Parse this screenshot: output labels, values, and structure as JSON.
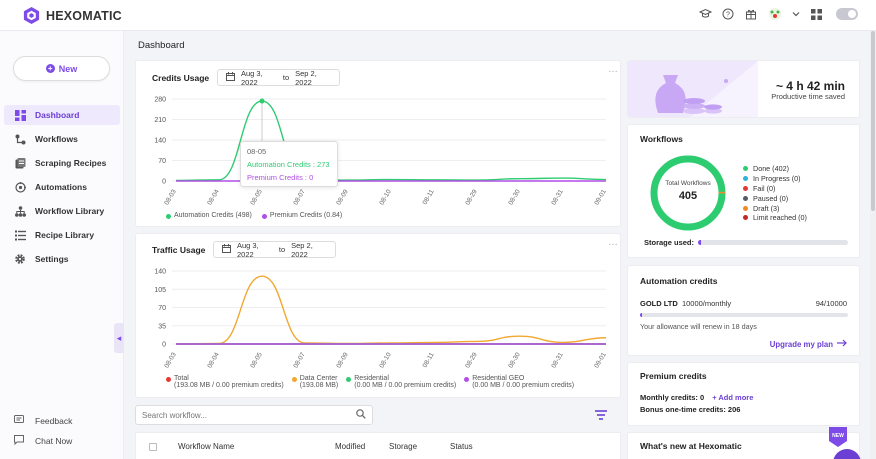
{
  "app": {
    "name": "HEXOMATIC"
  },
  "sidebar": {
    "new_label": "New",
    "items": [
      {
        "label": "Dashboard",
        "icon": "dashboard-icon",
        "active": true
      },
      {
        "label": "Workflows",
        "icon": "workflow-icon",
        "active": false
      },
      {
        "label": "Scraping Recipes",
        "icon": "scraping-icon",
        "active": false
      },
      {
        "label": "Automations",
        "icon": "automation-icon",
        "active": false
      },
      {
        "label": "Workflow Library",
        "icon": "library-icon",
        "active": false
      },
      {
        "label": "Recipe Library",
        "icon": "recipe-library-icon",
        "active": false
      },
      {
        "label": "Settings",
        "icon": "settings-icon",
        "active": false
      }
    ],
    "bottom": [
      {
        "label": "Feedback",
        "icon": "feedback-icon"
      },
      {
        "label": "Chat Now",
        "icon": "chat-icon"
      }
    ]
  },
  "page": {
    "title": "Dashboard"
  },
  "credits": {
    "title": "Credits Usage",
    "date_from": "Aug 3, 2022",
    "date_to_word": "to",
    "date_to": "Sep 2, 2022",
    "tooltip": {
      "date": "08-05",
      "automation": "Automation Credits : 273",
      "premium": "Premium Credits : 0"
    },
    "legend": [
      {
        "label": "Automation Credits (498)",
        "color": "#2ecc71"
      },
      {
        "label": "Premium Credits (0.84)",
        "color": "#b04fe6"
      }
    ]
  },
  "traffic": {
    "title": "Traffic Usage",
    "date_from": "Aug 3, 2022",
    "date_to_word": "to",
    "date_to": "Sep 2, 2022",
    "legend": [
      {
        "label": "Total",
        "sub": "(193.08 MB / 0.00 premium credits)",
        "color": "#e53935"
      },
      {
        "label": "Data Center",
        "sub": "(193.08 MB)",
        "color": "#f0a830"
      },
      {
        "label": "Residential",
        "sub": "(0.00 MB / 0.00 premium credits)",
        "color": "#2ecc71"
      },
      {
        "label": "Residential GEO",
        "sub": "(0.00 MB / 0.00 premium credits)",
        "color": "#b04fe6"
      }
    ]
  },
  "chart_data": [
    {
      "type": "line",
      "title": "Credits Usage",
      "x": [
        "08-03",
        "08-04",
        "08-05",
        "08-07",
        "08-09",
        "08-10",
        "08-11",
        "08-29",
        "08-30",
        "08-31",
        "09-01"
      ],
      "yticks": [
        0,
        70,
        140,
        210,
        280
      ],
      "ylim": [
        0,
        280
      ],
      "series": [
        {
          "name": "Automation Credits",
          "color": "#2ecc71",
          "values": [
            2,
            4,
            273,
            6,
            3,
            5,
            4,
            3,
            8,
            10,
            5
          ]
        },
        {
          "name": "Premium Credits",
          "color": "#b04fe6",
          "values": [
            0,
            0,
            0,
            0,
            0,
            0,
            0,
            0,
            0,
            0,
            0
          ]
        }
      ]
    },
    {
      "type": "line",
      "title": "Traffic Usage",
      "x": [
        "08-03",
        "08-04",
        "08-05",
        "08-07",
        "08-09",
        "08-10",
        "08-11",
        "08-29",
        "08-30",
        "08-31",
        "09-01"
      ],
      "yticks": [
        0,
        35,
        70,
        105,
        140
      ],
      "ylim": [
        0,
        140
      ],
      "series": [
        {
          "name": "Total",
          "color": "#e53935",
          "values": [
            0,
            0,
            0,
            0,
            0,
            0,
            0,
            0,
            0,
            0,
            0
          ]
        },
        {
          "name": "Data Center",
          "color": "#f0a830",
          "values": [
            0,
            1,
            130,
            2,
            1,
            2,
            3,
            5,
            15,
            3,
            12
          ]
        },
        {
          "name": "Residential",
          "color": "#2ecc71",
          "values": [
            0,
            0,
            0,
            0,
            0,
            0,
            0,
            0,
            0,
            0,
            0
          ]
        },
        {
          "name": "Residential GEO",
          "color": "#b04fe6",
          "values": [
            0,
            0,
            0,
            0,
            0,
            0,
            0,
            0,
            0,
            0,
            0
          ]
        }
      ]
    }
  ],
  "search": {
    "placeholder": "Search workflow..."
  },
  "table": {
    "headers": [
      "Workflow Name",
      "Modified",
      "Storage",
      "Status"
    ]
  },
  "time_saved": {
    "value": "~ 4 h 42 min",
    "label": "Productive time saved"
  },
  "workflows": {
    "title": "Workflows",
    "total_label": "Total Workflows",
    "total": "405",
    "items": [
      {
        "label": "Done (402)",
        "color": "#2ecc71"
      },
      {
        "label": "In Progress (0)",
        "color": "#2bb3d9"
      },
      {
        "label": "Fail (0)",
        "color": "#e53935"
      },
      {
        "label": "Paused (0)",
        "color": "#555c66"
      },
      {
        "label": "Draft (3)",
        "color": "#f08a24"
      },
      {
        "label": "Limit reached (0)",
        "color": "#c62828"
      }
    ],
    "storage_label": "Storage used:",
    "storage_fraction": 0.02
  },
  "automation_credits": {
    "title": "Automation credits",
    "plan": "GOLD LTD",
    "allowance": "10000/monthly",
    "count": "94/10000",
    "fraction": 0.0094,
    "renew": "Your allowance will renew  in 18 days",
    "upgrade": "Upgrade my plan"
  },
  "premium_credits": {
    "title": "Premium credits",
    "monthly": "Monthly credits: 0",
    "add": "+ Add more",
    "bonus": "Bonus one-time credits: 206"
  },
  "news": {
    "title": "What's new at Hexomatic",
    "badge": "NEW"
  }
}
